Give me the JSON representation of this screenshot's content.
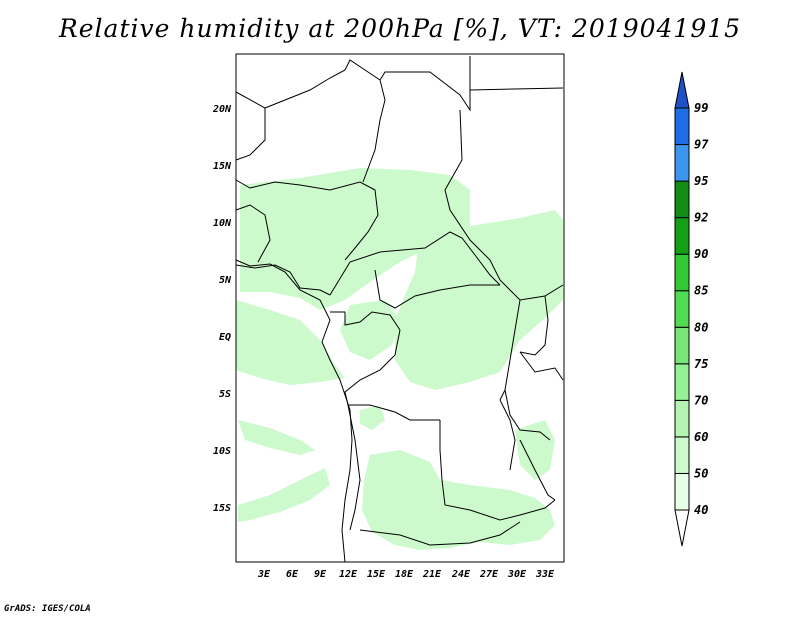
{
  "title": "Relative humidity at 200hPa [%], VT: 2019041915",
  "credit": "GrADS: IGES/COLA",
  "map": {
    "lat_labels": [
      "20N",
      "15N",
      "10N",
      "5N",
      "EQ",
      "5S",
      "10S",
      "15S"
    ],
    "lon_labels": [
      "3E",
      "6E",
      "9E",
      "12E",
      "15E",
      "18E",
      "21E",
      "24E",
      "27E",
      "30E",
      "33E"
    ],
    "fill_color": "#ccfacc",
    "border_color": "#000000"
  },
  "colorbar": {
    "levels": [
      "40",
      "50",
      "60",
      "70",
      "75",
      "80",
      "85",
      "90",
      "92",
      "95",
      "97",
      "99"
    ],
    "colors": [
      "#ffffff",
      "#e6ffe6",
      "#cdfacd",
      "#b4f5b4",
      "#96f096",
      "#78e678",
      "#50dc50",
      "#32c832",
      "#14a014",
      "#128c12",
      "#3c96f0",
      "#1e6ee6",
      "#1e50c8"
    ]
  }
}
